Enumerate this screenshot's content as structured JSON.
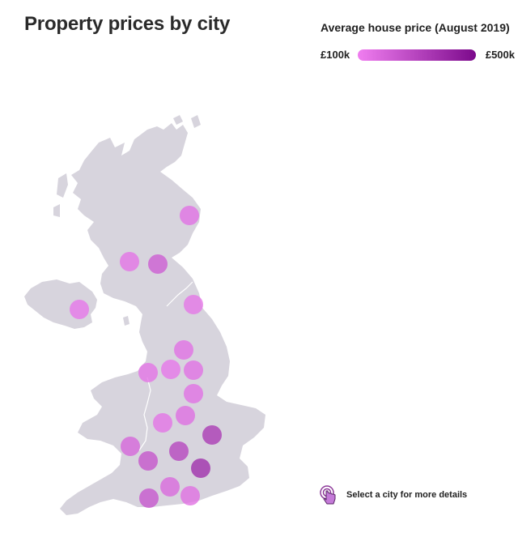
{
  "title": "Property prices by city",
  "legend": {
    "title": "Average house price (August 2019)",
    "min_label": "£100k",
    "max_label": "£500k",
    "min_value": 100,
    "max_value": 500,
    "color_low": "#f07ef0",
    "color_high": "#7c0a8c"
  },
  "colors": {
    "land": "#d7d4dd",
    "border_line": "#ffffff"
  },
  "hint": {
    "icon": "pointer-hand-icon",
    "text": "Select a city for more details"
  },
  "chart_data": {
    "type": "bubble-map",
    "value_unit": "£k",
    "cities": [
      {
        "value": 150
      },
      {
        "value": 140
      },
      {
        "value": 220
      },
      {
        "value": 130
      },
      {
        "value": 135
      },
      {
        "value": 150
      },
      {
        "value": 140
      },
      {
        "value": 130
      },
      {
        "value": 150
      },
      {
        "value": 150
      },
      {
        "value": 160
      },
      {
        "value": 140
      },
      {
        "value": 340
      },
      {
        "value": 190
      },
      {
        "value": 300
      },
      {
        "value": 250
      },
      {
        "value": 380
      },
      {
        "value": 240
      },
      {
        "value": 175
      },
      {
        "value": 155
      }
    ]
  }
}
